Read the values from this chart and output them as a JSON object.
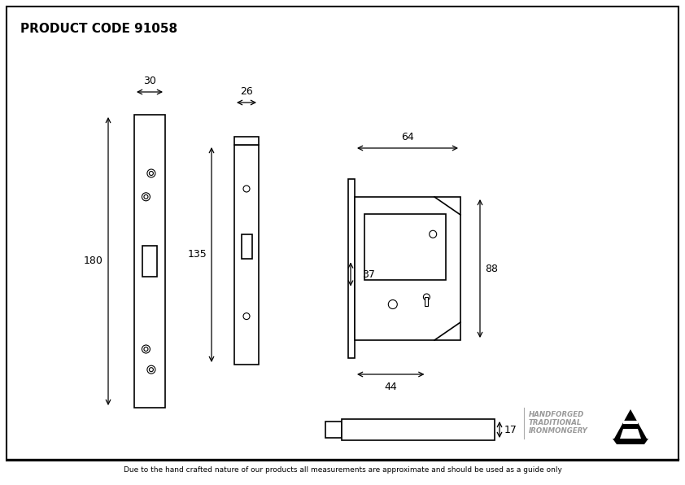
{
  "title": "PRODUCT CODE 91058",
  "bg_color": "#ffffff",
  "line_color": "#000000",
  "line_width": 1.2,
  "footer_text": "Due to the hand crafted nature of our products all measurements are approximate and should be used as a guide only",
  "brand_text1": "HANDFORGED",
  "brand_text2": "TRADITIONAL",
  "brand_text3": "IRONMONGERY",
  "dim_30": "30",
  "dim_26": "26",
  "dim_64": "64",
  "dim_180": "180",
  "dim_135": "135",
  "dim_88": "88",
  "dim_37": "37",
  "dim_44": "44",
  "dim_17": "17"
}
